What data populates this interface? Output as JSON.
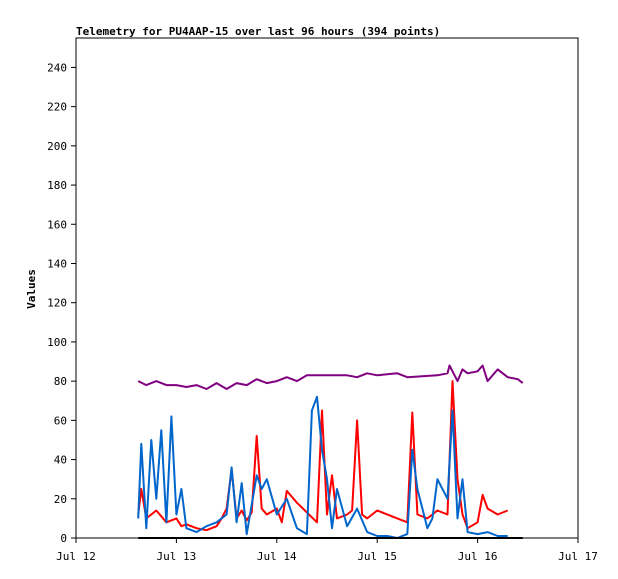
{
  "chart_data": {
    "type": "line",
    "title": "Telemetry for PU4AAP-15 over last 96 hours (394 points)",
    "xlabel": "",
    "ylabel": "Values",
    "x_axis": {
      "min": "Jul 12",
      "max": "Jul 17",
      "unit": "days"
    },
    "xticks": [
      "Jul 12",
      "Jul 13",
      "Jul 14",
      "Jul 15",
      "Jul 16",
      "Jul 17"
    ],
    "ylim": [
      0,
      255
    ],
    "yticks": [
      0,
      20,
      40,
      60,
      80,
      100,
      120,
      140,
      160,
      180,
      200,
      220,
      240
    ],
    "grid": false,
    "legend": "none",
    "series": [
      {
        "color": "#800080",
        "x": [
          0.62,
          0.7,
          0.8,
          0.9,
          1.0,
          1.1,
          1.2,
          1.3,
          1.4,
          1.5,
          1.6,
          1.7,
          1.8,
          1.9,
          2.0,
          2.1,
          2.2,
          2.3,
          2.35,
          2.5,
          2.6,
          2.7,
          2.8,
          2.9,
          3.0,
          3.2,
          3.3,
          3.6,
          3.7,
          3.72,
          3.8,
          3.85,
          3.9,
          4.0,
          4.05,
          4.1,
          4.2,
          4.3,
          4.4,
          4.45
        ],
        "y": [
          80,
          78,
          80,
          78,
          78,
          77,
          78,
          76,
          79,
          76,
          79,
          78,
          81,
          79,
          80,
          82,
          80,
          83,
          83,
          83,
          83,
          83,
          82,
          84,
          83,
          84,
          82,
          83,
          84,
          88,
          80,
          86,
          84,
          85,
          88,
          80,
          86,
          82,
          81,
          79
        ]
      },
      {
        "color": "#ff0000",
        "x": [
          0.62,
          0.65,
          0.7,
          0.8,
          0.9,
          1.0,
          1.05,
          1.1,
          1.2,
          1.3,
          1.4,
          1.45,
          1.5,
          1.55,
          1.6,
          1.65,
          1.7,
          1.75,
          1.8,
          1.85,
          1.9,
          2.0,
          2.05,
          2.1,
          2.2,
          2.4,
          2.45,
          2.5,
          2.55,
          2.6,
          2.7,
          2.75,
          2.8,
          2.85,
          2.9,
          3.0,
          3.2,
          3.3,
          3.35,
          3.4,
          3.5,
          3.6,
          3.7,
          3.75,
          3.8,
          3.85,
          3.9,
          4.0,
          4.05,
          4.1,
          4.2,
          4.3
        ],
        "y": [
          12,
          25,
          10,
          14,
          8,
          10,
          6,
          7,
          5,
          4,
          6,
          10,
          15,
          35,
          10,
          14,
          9,
          13,
          52,
          15,
          12,
          15,
          8,
          24,
          18,
          8,
          65,
          12,
          32,
          10,
          12,
          14,
          60,
          12,
          10,
          14,
          10,
          8,
          64,
          12,
          10,
          14,
          12,
          80,
          30,
          12,
          5,
          8,
          22,
          15,
          12,
          14
        ]
      },
      {
        "color": "#0066cc",
        "x": [
          0.62,
          0.65,
          0.7,
          0.75,
          0.8,
          0.85,
          0.9,
          0.95,
          1.0,
          1.05,
          1.1,
          1.2,
          1.3,
          1.4,
          1.5,
          1.55,
          1.6,
          1.65,
          1.7,
          1.8,
          1.85,
          1.9,
          2.0,
          2.1,
          2.2,
          2.3,
          2.35,
          2.4,
          2.45,
          2.5,
          2.55,
          2.6,
          2.7,
          2.8,
          2.9,
          3.0,
          3.1,
          3.2,
          3.3,
          3.35,
          3.4,
          3.5,
          3.55,
          3.6,
          3.7,
          3.75,
          3.8,
          3.85,
          3.9,
          4.0,
          4.1,
          4.2,
          4.3
        ],
        "y": [
          10,
          48,
          5,
          50,
          20,
          55,
          8,
          62,
          12,
          25,
          5,
          3,
          6,
          8,
          12,
          36,
          8,
          28,
          2,
          32,
          25,
          30,
          12,
          20,
          5,
          2,
          65,
          72,
          45,
          30,
          5,
          25,
          6,
          15,
          3,
          1,
          1,
          0,
          2,
          45,
          25,
          5,
          10,
          30,
          20,
          65,
          10,
          30,
          3,
          2,
          3,
          1,
          1
        ]
      },
      {
        "color": "#000000",
        "x": [
          0.62,
          4.45
        ],
        "y": [
          0,
          0
        ]
      }
    ]
  }
}
